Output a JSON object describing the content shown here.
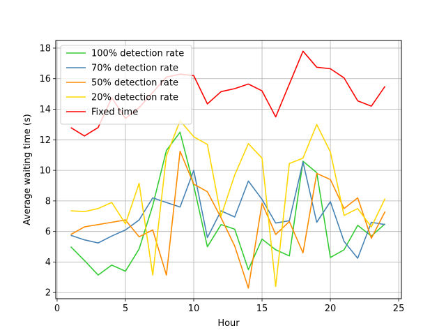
{
  "chart_data": {
    "type": "line",
    "title": "",
    "xlabel": "Hour",
    "ylabel": "Average waiting time (s)",
    "xlim": [
      -0.1,
      25.2
    ],
    "ylim": [
      1.6,
      18.5
    ],
    "xticks": [
      0,
      5,
      10,
      15,
      20,
      25
    ],
    "yticks": [
      2,
      4,
      6,
      8,
      10,
      12,
      14,
      16,
      18
    ],
    "grid": true,
    "legend_position": "upper-left",
    "x": [
      1,
      2,
      3,
      4,
      5,
      6,
      7,
      8,
      9,
      10,
      11,
      12,
      13,
      14,
      15,
      16,
      17,
      18,
      19,
      20,
      21,
      22,
      23,
      24
    ],
    "series": [
      {
        "name": "100% detection rate",
        "color": "#33cc33",
        "values": [
          5.0,
          4.1,
          3.15,
          3.8,
          3.4,
          4.85,
          7.7,
          11.3,
          12.5,
          9.0,
          5.0,
          6.45,
          6.15,
          3.5,
          5.5,
          4.8,
          4.4,
          10.6,
          9.85,
          4.3,
          4.8,
          6.4,
          5.7,
          6.5
        ]
      },
      {
        "name": "70% detection rate",
        "color": "#4682b4",
        "values": [
          5.75,
          5.45,
          5.25,
          5.7,
          6.1,
          6.75,
          8.2,
          7.9,
          7.6,
          10.0,
          5.6,
          7.35,
          6.95,
          9.3,
          8.1,
          6.55,
          6.7,
          10.55,
          6.6,
          7.95,
          5.35,
          4.25,
          6.6,
          6.45
        ]
      },
      {
        "name": "50% detection rate",
        "color": "#ff8c00",
        "values": [
          5.8,
          6.3,
          6.45,
          6.6,
          6.75,
          5.65,
          6.1,
          3.15,
          11.25,
          9.1,
          8.6,
          6.9,
          5.05,
          2.3,
          7.85,
          5.8,
          6.65,
          4.6,
          9.8,
          9.4,
          7.5,
          8.2,
          5.55,
          7.3
        ]
      },
      {
        "name": "20% detection rate",
        "color": "#ffd700",
        "values": [
          7.35,
          7.3,
          7.5,
          7.9,
          6.5,
          9.15,
          3.15,
          10.95,
          13.25,
          12.2,
          11.7,
          7.0,
          9.7,
          11.75,
          10.8,
          2.4,
          10.45,
          10.8,
          13.0,
          11.2,
          7.05,
          7.5,
          6.3,
          8.15
        ]
      },
      {
        "name": "Fixed time",
        "color": "#ff0000",
        "values": [
          12.8,
          12.25,
          12.8,
          14.75,
          13.4,
          14.1,
          15.1,
          16.1,
          16.3,
          16.2,
          14.35,
          15.15,
          15.35,
          15.65,
          15.2,
          13.5,
          15.65,
          17.8,
          16.75,
          16.65,
          16.05,
          14.55,
          14.2,
          15.5
        ]
      }
    ]
  }
}
